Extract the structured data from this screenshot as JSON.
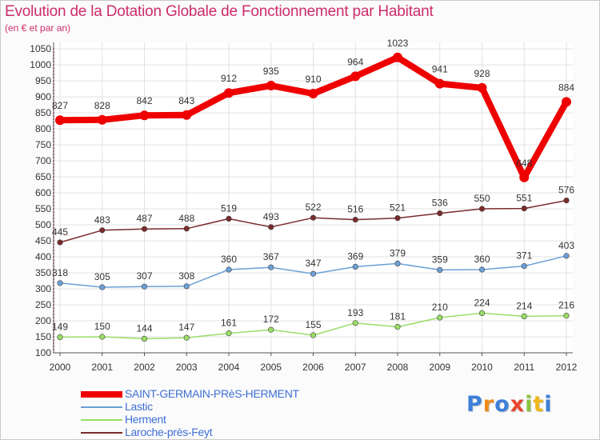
{
  "title": "Evolution de la Dotation Globale de Fonctionnement par Habitant",
  "subtitle": "(en € et par an)",
  "logo": "Proxiti",
  "colors": {
    "title": "#cc2d6a",
    "legend_text": "#3f6fd6",
    "axis": "#555555",
    "grid": "#e2e2e2"
  },
  "chart_data": {
    "type": "line",
    "title": "Evolution de la Dotation Globale de Fonctionnement par Habitant",
    "subtitle": "(en € et par an)",
    "x": [
      "2000",
      "2001",
      "2002",
      "2003",
      "2004",
      "2005",
      "2006",
      "2007",
      "2008",
      "2009",
      "2010",
      "2011",
      "2012"
    ],
    "ylim": [
      100,
      1050
    ],
    "yticks": [
      100,
      150,
      200,
      250,
      300,
      350,
      400,
      450,
      500,
      550,
      600,
      650,
      700,
      750,
      800,
      850,
      900,
      950,
      1000,
      1050
    ],
    "grid": true,
    "legend_position": "bottom-left",
    "series": [
      {
        "name": "SAINT-GERMAIN-PRèS-HERMENT",
        "color": "#ee0000",
        "weight": "bold",
        "values": [
          827,
          828,
          842,
          843,
          912,
          935,
          910,
          964,
          1023,
          941,
          928,
          648,
          884
        ]
      },
      {
        "name": "Lastic",
        "color": "#6b9fd6",
        "weight": "thin",
        "values": [
          318,
          305,
          307,
          308,
          360,
          367,
          347,
          369,
          379,
          359,
          360,
          371,
          403
        ]
      },
      {
        "name": "Herment",
        "color": "#99dd66",
        "weight": "thin",
        "values": [
          149,
          150,
          144,
          147,
          161,
          172,
          155,
          193,
          181,
          210,
          224,
          214,
          216
        ]
      },
      {
        "name": "Laroche-près-Feyt",
        "color": "#7a2b2b",
        "weight": "thin",
        "values": [
          445,
          483,
          487,
          488,
          519,
          493,
          522,
          516,
          521,
          536,
          550,
          551,
          576
        ]
      }
    ]
  }
}
